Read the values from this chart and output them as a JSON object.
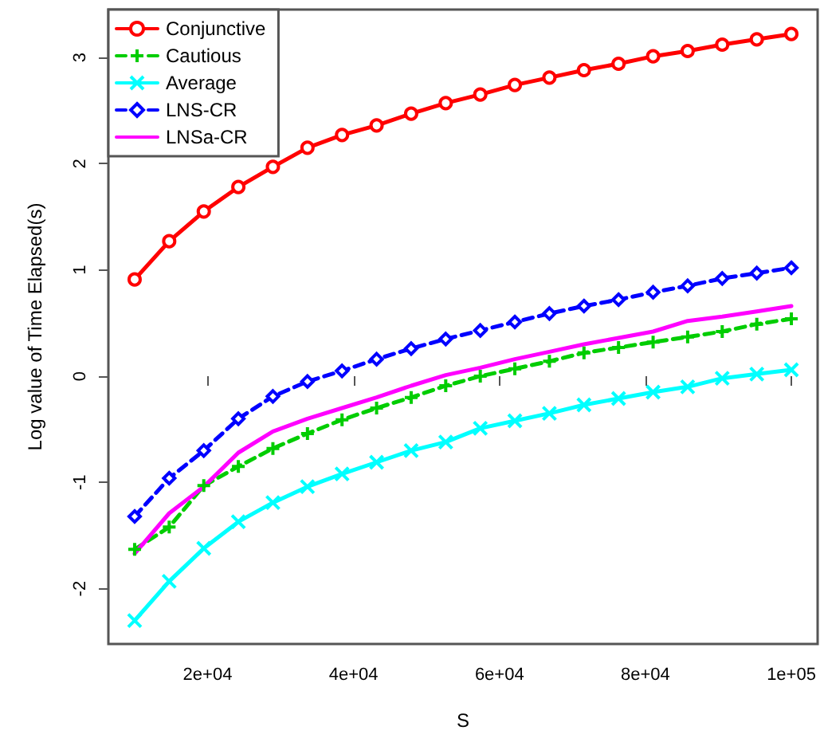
{
  "chart_data": {
    "type": "line",
    "xlabel": "S",
    "ylabel": "Log value of Time Elapsed(s)",
    "x": [
      10000,
      14737,
      19474,
      24211,
      28947,
      33684,
      38421,
      43158,
      47895,
      52632,
      57368,
      62105,
      66842,
      71579,
      76316,
      81053,
      85789,
      90526,
      95263,
      100000
    ],
    "xlim": [
      6400,
      103600
    ],
    "ylim": [
      -2.52,
      3.45
    ],
    "xticks": [
      {
        "value": 20000,
        "label": "2e+04"
      },
      {
        "value": 40000,
        "label": "4e+04"
      },
      {
        "value": 60000,
        "label": "6e+04"
      },
      {
        "value": 80000,
        "label": "8e+04"
      },
      {
        "value": 100000,
        "label": "1e+05"
      }
    ],
    "yticks": [
      -2,
      -1,
      0,
      1,
      2,
      3
    ],
    "grid": false,
    "legend": "top left",
    "series": [
      {
        "name": "Conjunctive",
        "color": "#ff0000",
        "marker": "circle",
        "line_style": "solid",
        "values": [
          0.91,
          1.27,
          1.55,
          1.78,
          1.97,
          2.15,
          2.27,
          2.36,
          2.47,
          2.57,
          2.65,
          2.74,
          2.81,
          2.88,
          2.94,
          3.01,
          3.06,
          3.12,
          3.17,
          3.22
        ]
      },
      {
        "name": "Cautious",
        "color": "#00cd00",
        "marker": "cross",
        "line_style": "dashed",
        "values": [
          -1.63,
          -1.42,
          -1.03,
          -0.85,
          -0.68,
          -0.54,
          -0.41,
          -0.3,
          -0.2,
          -0.09,
          0.0,
          0.07,
          0.14,
          0.22,
          0.27,
          0.32,
          0.37,
          0.42,
          0.49,
          0.54
        ]
      },
      {
        "name": "Average",
        "color": "#00ffff",
        "marker": "x",
        "line_style": "solid",
        "values": [
          -2.3,
          -1.93,
          -1.62,
          -1.37,
          -1.19,
          -1.04,
          -0.92,
          -0.81,
          -0.7,
          -0.62,
          -0.49,
          -0.42,
          -0.35,
          -0.27,
          -0.21,
          -0.15,
          -0.1,
          -0.02,
          0.02,
          0.06
        ]
      },
      {
        "name": "LNS-CR",
        "color": "#0000ff",
        "marker": "diamond",
        "line_style": "dashed",
        "values": [
          -1.32,
          -0.96,
          -0.7,
          -0.4,
          -0.19,
          -0.05,
          0.05,
          0.16,
          0.26,
          0.35,
          0.43,
          0.51,
          0.59,
          0.66,
          0.72,
          0.79,
          0.85,
          0.92,
          0.97,
          1.02
        ]
      },
      {
        "name": "LNSa-CR",
        "color": "#ff00ff",
        "marker": "none",
        "line_style": "solid",
        "values": [
          -1.67,
          -1.29,
          -1.04,
          -0.72,
          -0.52,
          -0.4,
          -0.3,
          -0.2,
          -0.09,
          0.01,
          0.08,
          0.16,
          0.23,
          0.3,
          0.36,
          0.42,
          0.52,
          0.56,
          0.61,
          0.66
        ]
      }
    ]
  }
}
